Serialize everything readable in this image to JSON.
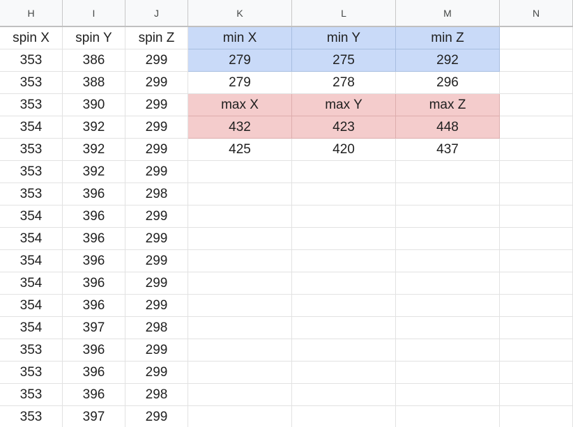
{
  "column_headers": [
    "H",
    "I",
    "J",
    "K",
    "L",
    "M",
    "N"
  ],
  "rows": [
    [
      "spin X",
      "spin Y",
      "spin Z",
      "min X",
      "min Y",
      "min Z",
      ""
    ],
    [
      "353",
      "386",
      "299",
      "279",
      "275",
      "292",
      ""
    ],
    [
      "353",
      "388",
      "299",
      "279",
      "278",
      "296",
      ""
    ],
    [
      "353",
      "390",
      "299",
      "max X",
      "max Y",
      "max Z",
      ""
    ],
    [
      "354",
      "392",
      "299",
      "432",
      "423",
      "448",
      ""
    ],
    [
      "353",
      "392",
      "299",
      "425",
      "420",
      "437",
      ""
    ],
    [
      "353",
      "392",
      "299",
      "",
      "",
      "",
      ""
    ],
    [
      "353",
      "396",
      "298",
      "",
      "",
      "",
      ""
    ],
    [
      "354",
      "396",
      "299",
      "",
      "",
      "",
      ""
    ],
    [
      "354",
      "396",
      "299",
      "",
      "",
      "",
      ""
    ],
    [
      "354",
      "396",
      "299",
      "",
      "",
      "",
      ""
    ],
    [
      "354",
      "396",
      "299",
      "",
      "",
      "",
      ""
    ],
    [
      "354",
      "396",
      "299",
      "",
      "",
      "",
      ""
    ],
    [
      "354",
      "397",
      "298",
      "",
      "",
      "",
      ""
    ],
    [
      "353",
      "396",
      "299",
      "",
      "",
      "",
      ""
    ],
    [
      "353",
      "396",
      "299",
      "",
      "",
      "",
      ""
    ],
    [
      "353",
      "396",
      "298",
      "",
      "",
      "",
      ""
    ],
    [
      "353",
      "397",
      "299",
      "",
      "",
      "",
      ""
    ]
  ],
  "highlight_colors": {
    "min_block": "#c9daf8",
    "max_block": "#f4cccc"
  }
}
